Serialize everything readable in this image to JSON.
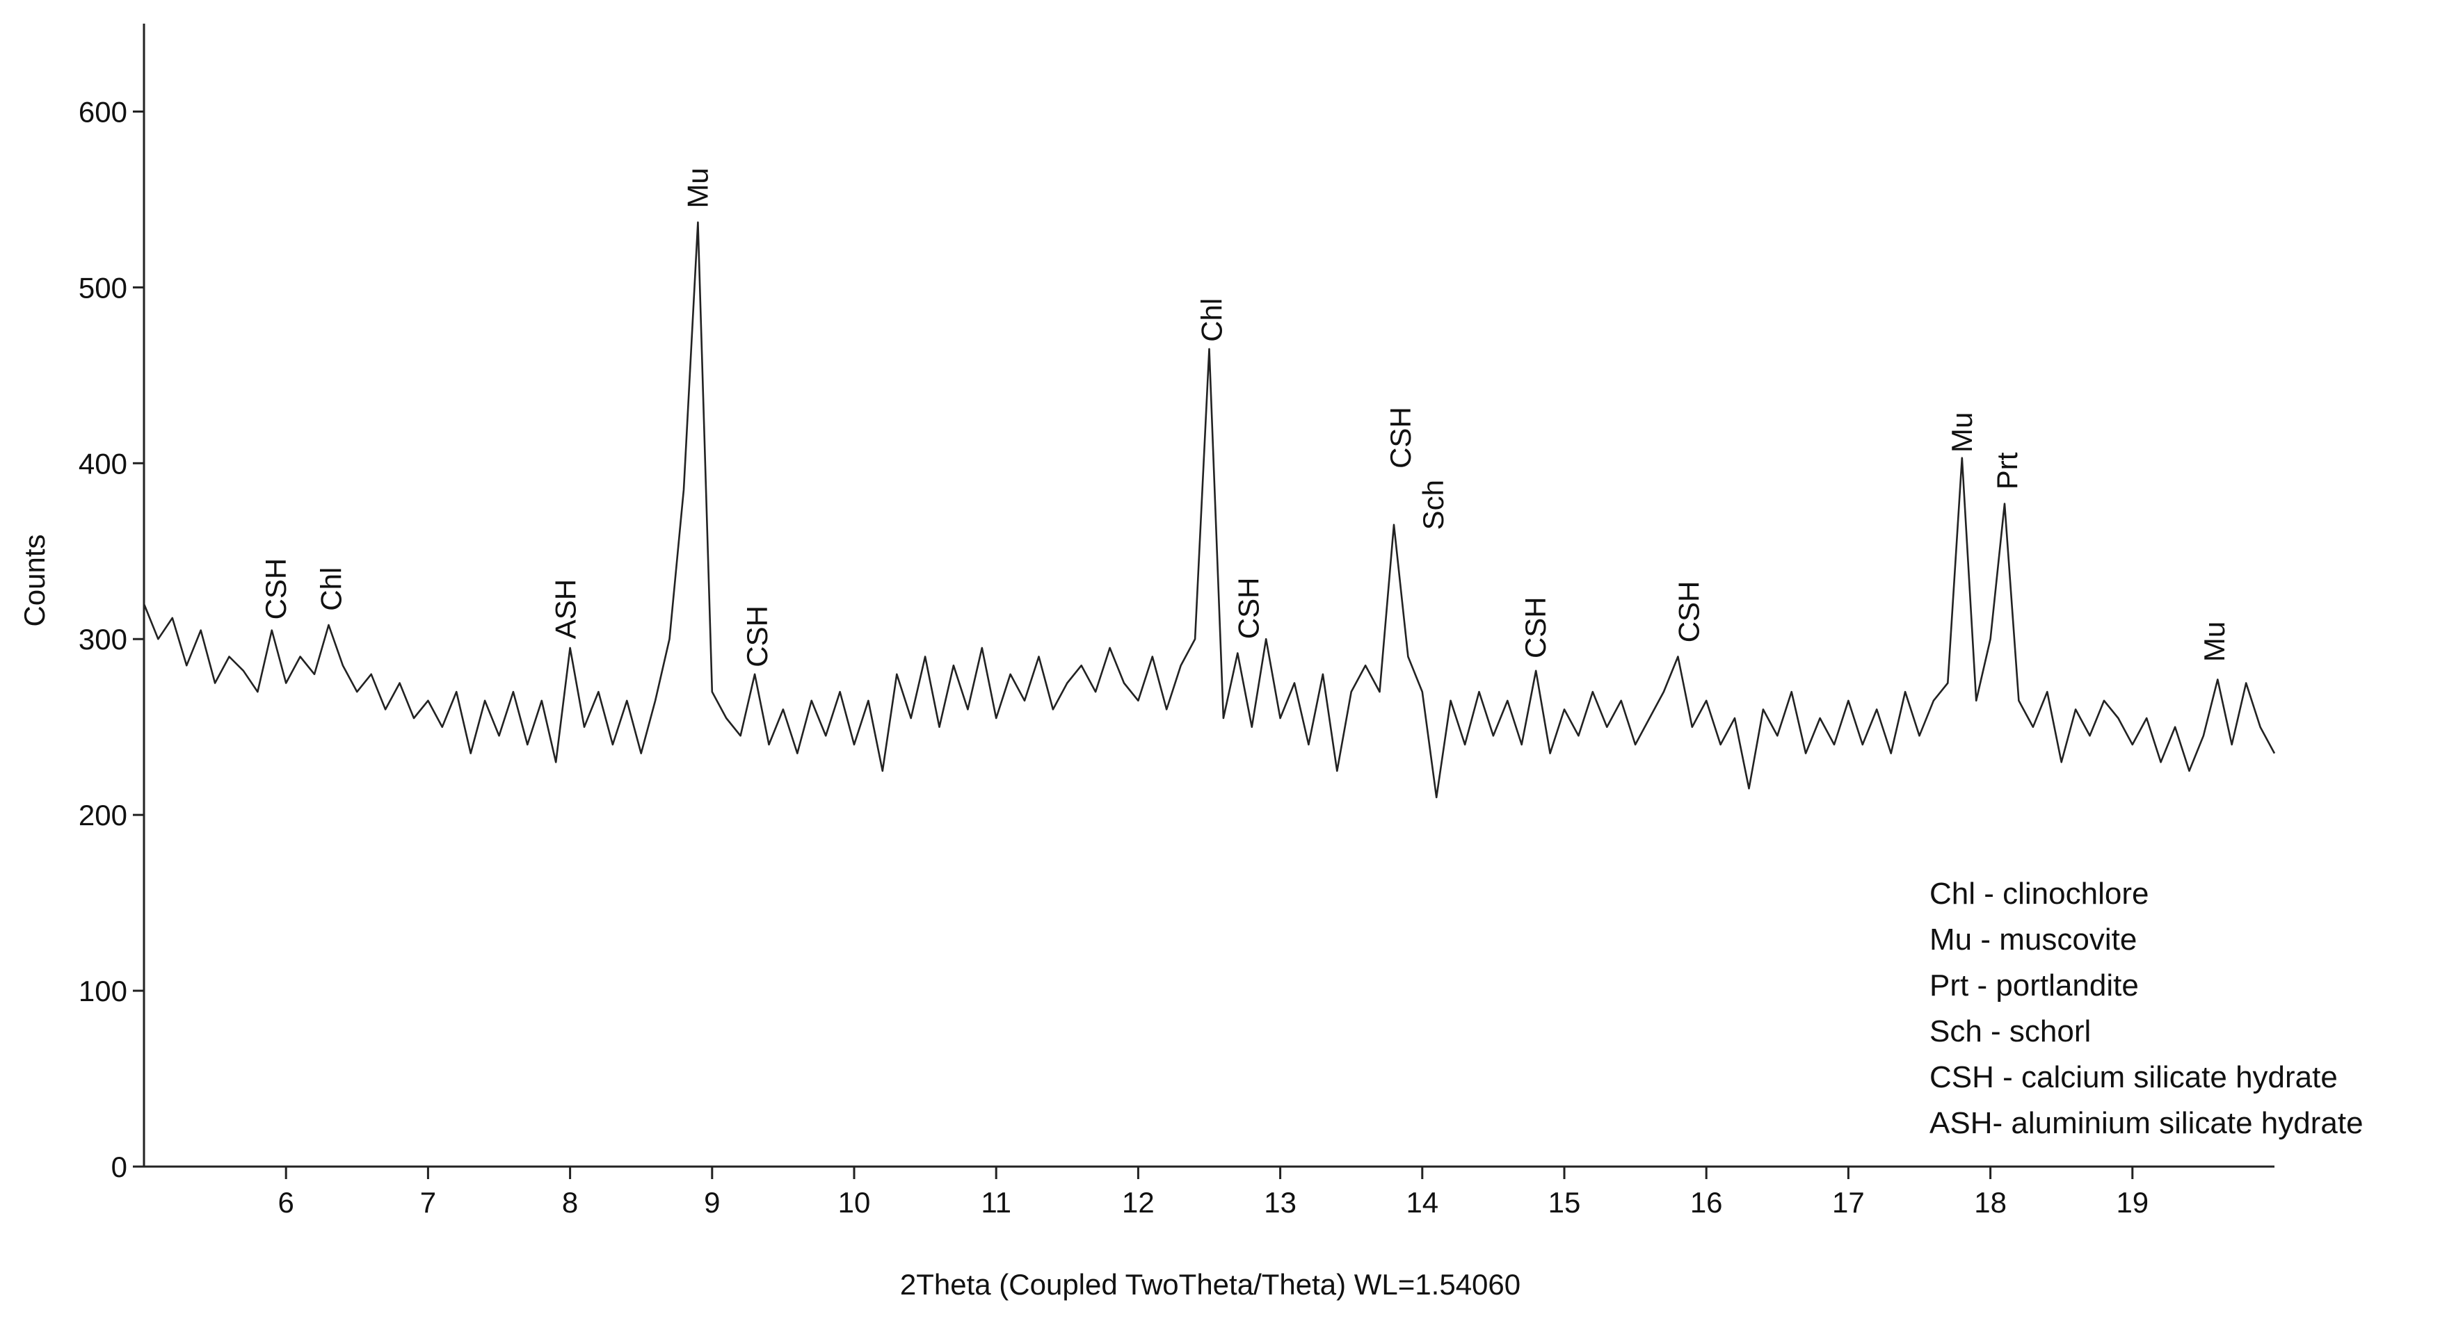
{
  "chart_data": {
    "type": "line",
    "xlabel": "2Theta (Coupled TwoTheta/Theta) WL=1.54060",
    "ylabel": "Counts",
    "color": "#222222",
    "xlim": [
      5.0,
      20.0
    ],
    "ylim": [
      0,
      650
    ],
    "xticks": [
      6,
      7,
      8,
      9,
      10,
      11,
      12,
      13,
      14,
      15,
      16,
      17,
      18,
      19
    ],
    "yticks": [
      0,
      100,
      200,
      300,
      400,
      500,
      600
    ],
    "x": [
      5.0,
      5.1,
      5.2,
      5.3,
      5.4,
      5.5,
      5.6,
      5.7,
      5.8,
      5.9,
      6.0,
      6.1,
      6.2,
      6.3,
      6.4,
      6.5,
      6.6,
      6.7,
      6.8,
      6.9,
      7.0,
      7.1,
      7.2,
      7.3,
      7.4,
      7.5,
      7.6,
      7.7,
      7.8,
      7.9,
      8.0,
      8.1,
      8.2,
      8.3,
      8.4,
      8.5,
      8.6,
      8.7,
      8.8,
      8.9,
      9.0,
      9.1,
      9.2,
      9.3,
      9.4,
      9.5,
      9.6,
      9.7,
      9.8,
      9.9,
      10.0,
      10.1,
      10.2,
      10.3,
      10.4,
      10.5,
      10.6,
      10.7,
      10.8,
      10.9,
      11.0,
      11.1,
      11.2,
      11.3,
      11.4,
      11.5,
      11.6,
      11.7,
      11.8,
      11.9,
      12.0,
      12.1,
      12.2,
      12.3,
      12.4,
      12.5,
      12.6,
      12.7,
      12.8,
      12.9,
      13.0,
      13.1,
      13.2,
      13.3,
      13.4,
      13.5,
      13.6,
      13.7,
      13.8,
      13.9,
      14.0,
      14.1,
      14.2,
      14.3,
      14.4,
      14.5,
      14.6,
      14.7,
      14.8,
      14.9,
      15.0,
      15.1,
      15.2,
      15.3,
      15.4,
      15.5,
      15.6,
      15.7,
      15.8,
      15.9,
      16.0,
      16.1,
      16.2,
      16.3,
      16.4,
      16.5,
      16.6,
      16.7,
      16.8,
      16.9,
      17.0,
      17.1,
      17.2,
      17.3,
      17.4,
      17.5,
      17.6,
      17.7,
      17.8,
      17.9,
      18.0,
      18.1,
      18.2,
      18.3,
      18.4,
      18.5,
      18.6,
      18.7,
      18.8,
      18.9,
      19.0,
      19.1,
      19.2,
      19.3,
      19.4,
      19.5,
      19.6,
      19.7,
      19.8,
      19.9,
      20.0
    ],
    "values": [
      320,
      300,
      312,
      285,
      305,
      275,
      290,
      282,
      270,
      305,
      275,
      290,
      280,
      308,
      285,
      270,
      280,
      260,
      275,
      255,
      265,
      250,
      270,
      235,
      265,
      245,
      270,
      240,
      265,
      230,
      295,
      250,
      270,
      240,
      265,
      235,
      265,
      300,
      385,
      537,
      270,
      255,
      245,
      280,
      240,
      260,
      235,
      265,
      245,
      270,
      240,
      265,
      225,
      280,
      255,
      290,
      250,
      285,
      260,
      295,
      255,
      280,
      265,
      290,
      260,
      275,
      285,
      270,
      295,
      275,
      265,
      290,
      260,
      285,
      300,
      465,
      255,
      292,
      250,
      300,
      255,
      275,
      240,
      280,
      225,
      270,
      285,
      270,
      365,
      290,
      270,
      210,
      265,
      240,
      270,
      245,
      265,
      240,
      282,
      235,
      260,
      245,
      270,
      250,
      265,
      240,
      255,
      270,
      290,
      250,
      265,
      240,
      255,
      215,
      260,
      245,
      270,
      235,
      255,
      240,
      265,
      240,
      260,
      235,
      270,
      245,
      265,
      275,
      403,
      265,
      300,
      377,
      265,
      250,
      270,
      230,
      260,
      245,
      265,
      255,
      240,
      255,
      230,
      250,
      225,
      245,
      277,
      240,
      275,
      250,
      235
    ],
    "annotations": [
      {
        "text": "CSH",
        "x": 5.93,
        "y": 311
      },
      {
        "text": "Chl",
        "x": 6.32,
        "y": 316
      },
      {
        "text": "ASH",
        "x": 7.97,
        "y": 300
      },
      {
        "text": "Mu",
        "x": 8.9,
        "y": 545
      },
      {
        "text": "CSH",
        "x": 9.32,
        "y": 284
      },
      {
        "text": "Chl",
        "x": 12.52,
        "y": 469
      },
      {
        "text": "CSH",
        "x": 12.78,
        "y": 300
      },
      {
        "text": "CSH",
        "x": 13.85,
        "y": 397
      },
      {
        "text": "Sch",
        "x": 14.08,
        "y": 362
      },
      {
        "text": "CSH",
        "x": 14.8,
        "y": 289
      },
      {
        "text": "CSH",
        "x": 15.88,
        "y": 298
      },
      {
        "text": "Mu",
        "x": 17.8,
        "y": 406
      },
      {
        "text": "Prt",
        "x": 18.12,
        "y": 385
      },
      {
        "text": "Mu",
        "x": 19.58,
        "y": 287
      }
    ],
    "legend_notes": [
      "Chl - clinochlore",
      "Mu - muscovite",
      "Prt - portlandite",
      "Sch - schorl",
      "CSH - calcium silicate hydrate",
      "ASH- aluminium silicate hydrate"
    ]
  }
}
